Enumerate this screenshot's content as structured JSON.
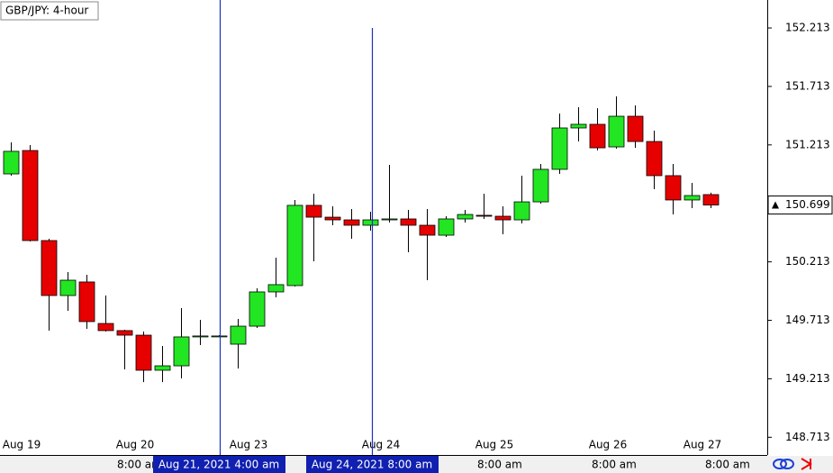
{
  "chart_data": {
    "type": "candlestick",
    "title": "GBP/JPY: 4-hour",
    "categories": [
      null,
      "Aug 19",
      null,
      null,
      null,
      null,
      null,
      "Aug 20",
      null,
      null,
      null,
      null,
      null,
      "Aug 23",
      null,
      null,
      null,
      null,
      null,
      null,
      "Aug 24",
      null,
      null,
      null,
      null,
      null,
      "Aug 25",
      null,
      null,
      null,
      null,
      null,
      "Aug 26",
      null,
      null,
      null,
      null,
      "Aug 27"
    ],
    "open": [
      150.965,
      151.165,
      150.395,
      149.925,
      150.041,
      149.686,
      149.625,
      149.586,
      149.286,
      149.324,
      149.571,
      149.579,
      149.509,
      149.663,
      149.956,
      150.01,
      150.696,
      150.595,
      150.572,
      150.526,
      150.572,
      150.58,
      150.526,
      150.441,
      150.58,
      150.611,
      150.603,
      150.572,
      150.726,
      151.004,
      151.358,
      151.389,
      151.196,
      151.458,
      151.242,
      150.95,
      150.742,
      150.788
    ],
    "high": [
      151.235,
      151.212,
      150.41,
      150.125,
      150.102,
      149.925,
      149.632,
      149.617,
      149.494,
      149.817,
      149.717,
      149.585,
      149.725,
      149.987,
      150.249,
      150.742,
      150.796,
      150.688,
      150.665,
      150.642,
      151.042,
      150.657,
      150.665,
      150.603,
      150.657,
      150.796,
      150.688,
      150.95,
      151.05,
      151.481,
      151.535,
      151.527,
      151.628,
      151.551,
      151.335,
      151.05,
      150.888,
      150.804
    ],
    "low": [
      150.95,
      150.387,
      149.625,
      149.794,
      149.64,
      149.617,
      149.293,
      149.185,
      149.185,
      149.216,
      149.501,
      149.571,
      149.301,
      149.648,
      149.91,
      150.002,
      150.218,
      150.526,
      150.41,
      150.48,
      150.549,
      150.295,
      150.056,
      150.426,
      150.549,
      150.58,
      150.449,
      150.541,
      150.711,
      150.965,
      151.242,
      151.165,
      151.181,
      151.188,
      150.834,
      150.618,
      150.672,
      150.672
    ],
    "close": [
      151.158,
      150.395,
      149.925,
      150.056,
      149.702,
      149.625,
      149.586,
      149.286,
      149.324,
      149.571,
      149.579,
      149.579,
      149.663,
      149.956,
      150.018,
      150.696,
      150.595,
      150.572,
      150.526,
      150.572,
      150.58,
      150.526,
      150.441,
      150.58,
      150.618,
      150.603,
      150.572,
      150.726,
      151.004,
      151.358,
      151.389,
      151.188,
      151.458,
      151.242,
      150.95,
      150.742,
      150.78,
      150.699
    ],
    "up_color": "#22e622",
    "down_color": "#e60000",
    "ylim": [
      148.6,
      152.452
    ],
    "yticks": [
      148.713,
      149.213,
      149.713,
      150.213,
      150.713,
      151.213,
      151.713,
      152.213
    ],
    "last_price": 150.699,
    "crosshair_labels": [
      "Aug 21, 2021 4:00 am",
      "Aug 24, 2021 8:00 am"
    ],
    "time_labels": [
      "8:00 am",
      "8:00 am",
      "8:00 am",
      "8:00 am"
    ]
  }
}
